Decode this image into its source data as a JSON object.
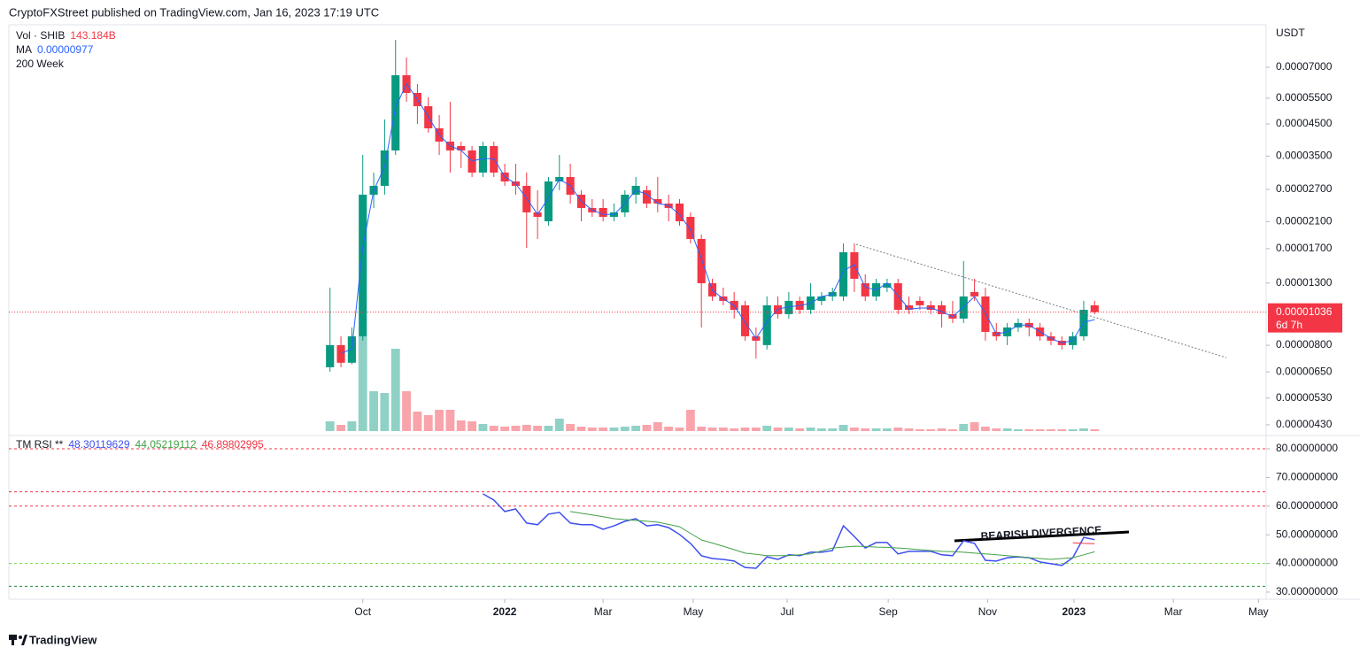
{
  "header": "CryptoFXStreet published on TradingView.com, Jan 16, 2023 17:19 UTC",
  "footer": "TradingView",
  "chart_data": [
    {
      "type": "candlestick",
      "currency": "USDT",
      "period": "200 Week",
      "up_color": "#089981",
      "down_color": "#f23645",
      "log_scale": true,
      "ylim": [
        4.096e-06,
        9.617e-05
      ],
      "yticks": [
        {
          "value": 7e-05,
          "label": "0.00007000"
        },
        {
          "value": 5.5e-05,
          "label": "0.00005500"
        },
        {
          "value": 4.5e-05,
          "label": "0.00004500"
        },
        {
          "value": 3.5e-05,
          "label": "0.00003500"
        },
        {
          "value": 2.7e-05,
          "label": "0.00002700"
        },
        {
          "value": 2.1e-05,
          "label": "0.00002100"
        },
        {
          "value": 1.7e-05,
          "label": "0.00001700"
        },
        {
          "value": 1.3e-05,
          "label": "0.00001300"
        },
        {
          "value": 8e-06,
          "label": "0.00000800"
        },
        {
          "value": 6.5e-06,
          "label": "0.00000650"
        },
        {
          "value": 5.3e-06,
          "label": "0.00000530"
        },
        {
          "value": 4.3e-06,
          "label": "0.00000430"
        }
      ],
      "xlim": [
        -29.4,
        85.7
      ],
      "xticks": [
        {
          "value": 3.0,
          "label": "Oct"
        },
        {
          "value": 16.0,
          "label": "2022"
        },
        {
          "value": 25.0,
          "label": "Mar"
        },
        {
          "value": 33.25,
          "label": "May"
        },
        {
          "value": 41.85,
          "label": "Jul"
        },
        {
          "value": 51.1,
          "label": "Sep"
        },
        {
          "value": 60.2,
          "label": "Nov"
        },
        {
          "value": 68.1,
          "label": "2023"
        },
        {
          "value": 77.2,
          "label": "Mar"
        },
        {
          "value": 85.0,
          "label": "May"
        }
      ],
      "open": [
        6.74e-06,
        8.01e-06,
        6.98e-06,
        8.58e-06,
        2.59e-05,
        2.775e-05,
        3.658e-05,
        6.578e-05,
        5.73e-05,
        5.166e-05,
        4.347e-05,
        3.919e-05,
        3.786e-05,
        3.658e-05,
        3.078e-05,
        3.786e-05,
        3.078e-05,
        2.872e-05,
        2.775e-05,
        2.256e-05,
        2.105e-05,
        2.872e-05,
        2.973e-05,
        2.59e-05,
        2.335e-05,
        2.335e-05,
        2.179e-05,
        2.256e-05,
        2.59e-05,
        2.681e-05,
        2.502e-05,
        2.417e-05,
        2.417e-05,
        2.179e-05,
        1.834e-05,
        1.298e-05,
        1.171e-05,
        1.131e-05,
        1.093e-05,
        8.58e-06,
        8.01e-06,
        1.093e-05,
        1.02e-05,
        1.131e-05,
        1.055e-05,
        1.131e-05,
        1.171e-05,
        1.171e-05,
        1.653e-05,
        1.298e-05,
        1.171e-05,
        1.254e-05,
        1.298e-05,
        1.093e-05,
        1.131e-05,
        1.093e-05,
        1.093e-05,
        1.02e-05,
        9.85e-06,
        1.212e-05,
        1.171e-05,
        8.88e-06,
        8.58e-06,
        9.19e-06,
        9.52e-06,
        9.19e-06,
        8.58e-06,
        8.29e-06,
        8.01e-06,
        8.58e-06,
        1.093e-05
      ],
      "high": [
        1.254e-05,
        8.58e-06,
        9.19e-06,
        3.534e-05,
        3.078e-05,
        4.658e-05,
        8.671e-05,
        7.553e-05,
        6.139e-05,
        5.535e-05,
        4.821e-05,
        5.347e-05,
        3.919e-05,
        3.786e-05,
        3.919e-05,
        3.919e-05,
        3.298e-05,
        3.298e-05,
        3.078e-05,
        2.681e-05,
        2.973e-05,
        3.534e-05,
        3.298e-05,
        2.681e-05,
        2.502e-05,
        2.502e-05,
        2.417e-05,
        2.681e-05,
        2.973e-05,
        2.775e-05,
        2.973e-05,
        2.59e-05,
        2.502e-05,
        2.256e-05,
        1.898e-05,
        1.344e-05,
        1.254e-05,
        1.212e-05,
        1.131e-05,
        9.19e-06,
        1.171e-05,
        1.171e-05,
        1.212e-05,
        1.171e-05,
        1.298e-05,
        1.212e-05,
        1.254e-05,
        1.771e-05,
        1.771e-05,
        1.391e-05,
        1.344e-05,
        1.344e-05,
        1.344e-05,
        1.171e-05,
        1.171e-05,
        1.131e-05,
        1.131e-05,
        1.131e-05,
        1.543e-05,
        1.344e-05,
        1.254e-05,
        9.52e-06,
        9.52e-06,
        9.85e-06,
        9.85e-06,
        9.52e-06,
        8.88e-06,
        8.58e-06,
        8.88e-06,
        1.131e-05,
        1.131e-05
      ],
      "low": [
        6.51e-06,
        6.74e-06,
        6.9e-06,
        8.29e-06,
        2.335e-05,
        2.59e-05,
        3.534e-05,
        5.347e-05,
        4.5e-05,
        4.2e-05,
        3.534e-05,
        3.078e-05,
        3.186e-05,
        2.973e-05,
        2.973e-05,
        2.973e-05,
        2.775e-05,
        2.59e-05,
        1.711e-05,
        1.834e-05,
        2.034e-05,
        2.681e-05,
        2.417e-05,
        2.105e-05,
        2.179e-05,
        2.105e-05,
        2.105e-05,
        2.179e-05,
        2.417e-05,
        2.335e-05,
        2.256e-05,
        2.105e-05,
        2.034e-05,
        1.771e-05,
        9.19e-06,
        1.131e-05,
        1.093e-05,
        9.85e-06,
        8.29e-06,
        7.22e-06,
        7.74e-06,
        9.85e-06,
        9.85e-06,
        1.02e-05,
        1.02e-05,
        1.093e-05,
        1.131e-05,
        1.131e-05,
        1.212e-05,
        1.131e-05,
        1.131e-05,
        1.212e-05,
        1.02e-05,
        1.02e-05,
        1.055e-05,
        1.02e-05,
        9.19e-06,
        9.52e-06,
        9.52e-06,
        1.131e-05,
        8.29e-06,
        8.29e-06,
        8.01e-06,
        8.88e-06,
        8.58e-06,
        8.29e-06,
        8.01e-06,
        7.74e-06,
        7.74e-06,
        8.29e-06,
        1.02e-05
      ],
      "close": [
        8.01e-06,
        6.98e-06,
        8.58e-06,
        2.59e-05,
        2.775e-05,
        3.658e-05,
        6.578e-05,
        5.73e-05,
        5.166e-05,
        4.347e-05,
        3.919e-05,
        3.658e-05,
        3.658e-05,
        3.078e-05,
        3.786e-05,
        3.078e-05,
        2.872e-05,
        2.775e-05,
        2.256e-05,
        2.179e-05,
        2.872e-05,
        2.973e-05,
        2.59e-05,
        2.335e-05,
        2.256e-05,
        2.179e-05,
        2.256e-05,
        2.59e-05,
        2.775e-05,
        2.417e-05,
        2.417e-05,
        2.335e-05,
        2.105e-05,
        1.834e-05,
        1.298e-05,
        1.171e-05,
        1.131e-05,
        1.055e-05,
        8.58e-06,
        8.29e-06,
        1.093e-05,
        1.02e-05,
        1.131e-05,
        1.055e-05,
        1.171e-05,
        1.171e-05,
        1.212e-05,
        1.653e-05,
        1.344e-05,
        1.171e-05,
        1.298e-05,
        1.298e-05,
        1.055e-05,
        1.055e-05,
        1.093e-05,
        1.055e-05,
        1.02e-05,
        9.85e-06,
        1.171e-05,
        1.171e-05,
        8.88e-06,
        8.58e-06,
        9.19e-06,
        9.52e-06,
        9.19e-06,
        8.58e-06,
        8.29e-06,
        8.01e-06,
        8.58e-06,
        1.055e-05,
        1.036e-05
      ],
      "last_label": "0.00001036",
      "countdown": "6d 7h",
      "volume": {
        "label": "Vol · SHIB",
        "last_value_label": "143.184B",
        "values": [
          788,
          501,
          788,
          7661,
          3222,
          3079,
          6659,
          3222,
          1575,
          1289,
          1718,
          1718,
          859,
          788,
          573,
          430,
          358,
          430,
          501,
          430,
          430,
          1002,
          573,
          358,
          286,
          286,
          286,
          358,
          430,
          501,
          716,
          358,
          286,
          1718,
          358,
          286,
          286,
          215,
          286,
          286,
          430,
          286,
          286,
          215,
          286,
          215,
          215,
          501,
          286,
          215,
          215,
          215,
          286,
          215,
          143,
          143,
          215,
          143,
          573,
          716,
          358,
          215,
          215,
          143,
          143,
          143,
          143,
          143,
          143,
          215,
          143.184
        ]
      },
      "ma": {
        "label": "MA",
        "color": "#2962ff",
        "last_value_label": "0.00000977",
        "values": [
          null,
          7.5e-06,
          7.78e-06,
          1.72e-05,
          2.68e-05,
          3.22e-05,
          5.12e-05,
          6.15e-05,
          5.45e-05,
          4.76e-05,
          4.13e-05,
          3.79e-05,
          3.66e-05,
          3.37e-05,
          3.43e-05,
          3.43e-05,
          2.98e-05,
          2.82e-05,
          2.52e-05,
          2.22e-05,
          2.53e-05,
          2.92e-05,
          2.78e-05,
          2.46e-05,
          2.3e-05,
          2.22e-05,
          2.22e-05,
          2.42e-05,
          2.68e-05,
          2.6e-05,
          2.42e-05,
          2.38e-05,
          2.22e-05,
          1.97e-05,
          1.57e-05,
          1.23e-05,
          1.15e-05,
          1.09e-05,
          9.57e-06,
          8.44e-06,
          9.61e-06,
          1.06e-05,
          1.08e-05,
          1.09e-05,
          1.11e-05,
          1.17e-05,
          1.19e-05,
          1.43e-05,
          1.5e-05,
          1.26e-05,
          1.23e-05,
          1.3e-05,
          1.18e-05,
          1.06e-05,
          1.07e-05,
          1.07e-05,
          1.04e-05,
          1e-05,
          1.08e-05,
          1.17e-05,
          1.03e-05,
          8.73e-06,
          8.89e-06,
          9.36e-06,
          9.36e-06,
          8.89e-06,
          8.44e-06,
          8.15e-06,
          8.3e-06,
          9.57e-06,
          9.77e-06
        ]
      }
    },
    {
      "type": "line",
      "title": "TM RSI **",
      "ylim": [
        27.5,
        83.1
      ],
      "yticks": [
        {
          "value": 80,
          "label": "80.00000000"
        },
        {
          "value": 70,
          "label": "70.00000000"
        },
        {
          "value": 60,
          "label": "60.00000000"
        },
        {
          "value": 50,
          "label": "50.00000000"
        },
        {
          "value": 40,
          "label": "40.00000000"
        },
        {
          "value": 30,
          "label": "30.00000000"
        }
      ],
      "levels": [
        {
          "value": 80,
          "color": "#f23645"
        },
        {
          "value": 65,
          "color": "#f23645"
        },
        {
          "value": 60,
          "color": "#f23645"
        },
        {
          "value": 40,
          "color": "#7ddc4c"
        },
        {
          "value": 32,
          "color": "#1b8a3a"
        }
      ],
      "annotation": "BEARISH DIVERGENCE",
      "series": [
        {
          "color": "#3d4ff0",
          "last_value_label": "48.30119629",
          "values": [
            null,
            null,
            null,
            null,
            null,
            null,
            null,
            null,
            null,
            null,
            null,
            null,
            null,
            null,
            64.3,
            62.1,
            58.1,
            59.0,
            54.1,
            53.5,
            57.2,
            57.8,
            54.1,
            53.5,
            53.5,
            51.9,
            53.1,
            54.7,
            55.6,
            53.1,
            53.5,
            52.5,
            50.1,
            47.0,
            42.7,
            41.7,
            41.4,
            40.8,
            38.6,
            38.3,
            42.3,
            41.4,
            43.0,
            42.7,
            43.9,
            43.9,
            44.5,
            53.1,
            49.4,
            45.4,
            47.3,
            47.3,
            43.3,
            44.2,
            44.2,
            44.2,
            43.0,
            42.7,
            47.9,
            47.0,
            41.1,
            40.8,
            42.0,
            42.3,
            42.0,
            40.5,
            39.9,
            39.3,
            42.0,
            49.1,
            48.30119629
          ]
        },
        {
          "color": "#43a047",
          "last_value_label": "44.05219112",
          "values": [
            null,
            null,
            null,
            null,
            null,
            null,
            null,
            null,
            null,
            null,
            null,
            null,
            null,
            null,
            null,
            null,
            null,
            null,
            null,
            null,
            null,
            null,
            58.1,
            57.5,
            56.9,
            56.3,
            55.6,
            55.3,
            55.0,
            54.7,
            54.4,
            53.6,
            52.8,
            50.5,
            48.2,
            47.1,
            46.0,
            44.8,
            43.6,
            43.2,
            42.7,
            42.7,
            42.7,
            43.0,
            43.3,
            44.4,
            45.4,
            45.7,
            46.0,
            45.9,
            45.7,
            45.6,
            45.4,
            45.1,
            44.8,
            44.5,
            44.2,
            44.1,
            43.9,
            43.6,
            43.3,
            43.0,
            42.7,
            42.4,
            42.0,
            41.7,
            41.4,
            41.7,
            42.0,
            43.0,
            44.05219112
          ]
        },
        {
          "color": "#f23645",
          "last_value_label": "46.89802995",
          "values": [
            null,
            null,
            null,
            null,
            null,
            null,
            null,
            null,
            null,
            null,
            null,
            null,
            null,
            null,
            null,
            null,
            null,
            null,
            null,
            null,
            null,
            null,
            null,
            null,
            null,
            null,
            null,
            null,
            null,
            null,
            null,
            null,
            null,
            null,
            null,
            null,
            null,
            null,
            null,
            null,
            null,
            null,
            null,
            null,
            null,
            null,
            null,
            null,
            null,
            null,
            null,
            null,
            null,
            null,
            null,
            null,
            null,
            null,
            null,
            null,
            null,
            null,
            null,
            null,
            null,
            null,
            null,
            null,
            47.2,
            47.0,
            46.89802995
          ]
        }
      ]
    }
  ]
}
